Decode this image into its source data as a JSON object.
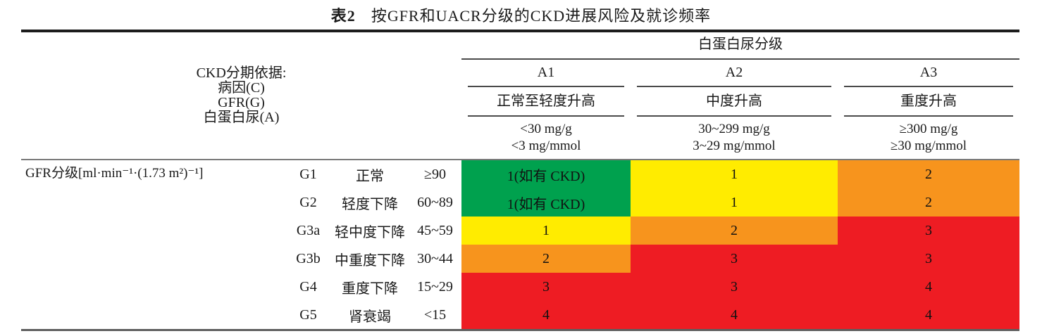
{
  "caption": {
    "label": "表2",
    "text": "按GFR和UACR分级的CKD进展风险及就诊频率"
  },
  "header": {
    "stage_basis_lines": [
      "CKD分期依据:",
      "病因(C)",
      "GFR(G)",
      "白蛋白尿(A)"
    ],
    "albuminuria_label": "白蛋白尿分级",
    "columns": [
      {
        "code": "A1",
        "desc": "正常至轻度升高",
        "range_mg_g": "<30 mg/g",
        "range_mg_mmol": "<3 mg/mmol"
      },
      {
        "code": "A2",
        "desc": "中度升高",
        "range_mg_g": "30~299 mg/g",
        "range_mg_mmol": "3~29 mg/mmol"
      },
      {
        "code": "A3",
        "desc": "重度升高",
        "range_mg_g": "≥300 mg/g",
        "range_mg_mmol": "≥30 mg/mmol"
      }
    ]
  },
  "body": {
    "gfr_label": "GFR分级[ml·min⁻¹·(1.73 m²)⁻¹]",
    "rows": [
      {
        "code": "G1",
        "desc": "正常",
        "range": "≥90",
        "cells": [
          {
            "text": "1(如有 CKD)",
            "color": "green"
          },
          {
            "text": "1",
            "color": "yellow"
          },
          {
            "text": "2",
            "color": "orange"
          }
        ]
      },
      {
        "code": "G2",
        "desc": "轻度下降",
        "range": "60~89",
        "cells": [
          {
            "text": "1(如有 CKD)",
            "color": "green"
          },
          {
            "text": "1",
            "color": "yellow"
          },
          {
            "text": "2",
            "color": "orange"
          }
        ]
      },
      {
        "code": "G3a",
        "desc": "轻中度下降",
        "range": "45~59",
        "cells": [
          {
            "text": "1",
            "color": "yellow"
          },
          {
            "text": "2",
            "color": "orange"
          },
          {
            "text": "3",
            "color": "red"
          }
        ]
      },
      {
        "code": "G3b",
        "desc": "中重度下降",
        "range": "30~44",
        "cells": [
          {
            "text": "2",
            "color": "orange"
          },
          {
            "text": "3",
            "color": "red"
          },
          {
            "text": "3",
            "color": "red"
          }
        ]
      },
      {
        "code": "G4",
        "desc": "重度下降",
        "range": "15~29",
        "cells": [
          {
            "text": "3",
            "color": "red"
          },
          {
            "text": "3",
            "color": "red"
          },
          {
            "text": "4",
            "color": "red"
          }
        ]
      },
      {
        "code": "G5",
        "desc": "肾衰竭",
        "range": "<15",
        "cells": [
          {
            "text": "4",
            "color": "red"
          },
          {
            "text": "4",
            "color": "red"
          },
          {
            "text": "4",
            "color": "red"
          }
        ]
      }
    ]
  },
  "colors": {
    "green": "#00A14E",
    "yellow": "#FFEC00",
    "orange": "#F7941D",
    "red": "#EE1C23"
  }
}
